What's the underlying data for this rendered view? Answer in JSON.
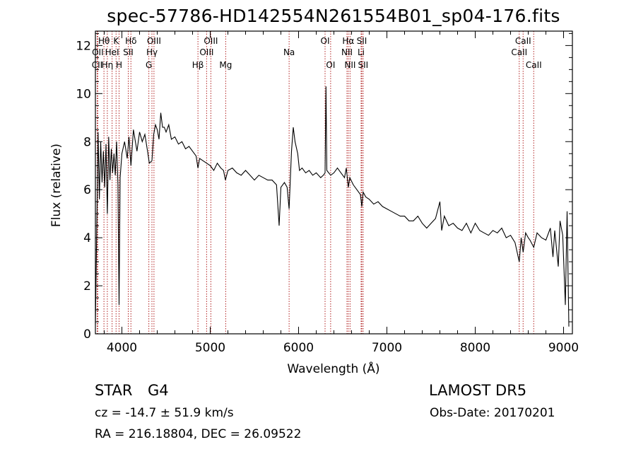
{
  "colors": {
    "axis": "#000000",
    "spectrum": "#000000",
    "line_markers": "#b22222"
  },
  "header": {
    "title": "spec-57786-HD142554N261554B01_sp04-176.fits"
  },
  "info": {
    "object_type": "STAR",
    "subclass": "G4",
    "survey": "LAMOST  DR5",
    "cz": "cz = -14.7 ± 51.9 km/s",
    "obs_date": "Obs-Date: 20170201",
    "radec": "RA = 216.18804, DEC =  26.09522"
  },
  "chart_data": {
    "type": "line",
    "title": "spec-57786-HD142554N261554B01_sp04-176.fits",
    "xlabel": "Wavelength (Å)",
    "ylabel": "Flux (relative)",
    "xlim": [
      3700,
      9100
    ],
    "ylim": [
      0,
      12.6
    ],
    "xticks": [
      4000,
      5000,
      6000,
      7000,
      8000,
      9000
    ],
    "yticks": [
      0,
      2,
      4,
      6,
      8,
      10,
      12
    ],
    "grid": false,
    "series": [
      {
        "values": [
          [
            3700,
            0.4
          ],
          [
            3715,
            4.3
          ],
          [
            3730,
            8.4
          ],
          [
            3745,
            5.6
          ],
          [
            3760,
            8.0
          ],
          [
            3775,
            6.3
          ],
          [
            3790,
            7.6
          ],
          [
            3805,
            6.1
          ],
          [
            3820,
            7.9
          ],
          [
            3835,
            5.0
          ],
          [
            3850,
            8.2
          ],
          [
            3865,
            6.4
          ],
          [
            3880,
            7.7
          ],
          [
            3895,
            6.7
          ],
          [
            3910,
            7.5
          ],
          [
            3925,
            6.6
          ],
          [
            3940,
            8.0
          ],
          [
            3955,
            6.2
          ],
          [
            3968,
            1.2
          ],
          [
            3980,
            6.5
          ],
          [
            4000,
            7.5
          ],
          [
            4030,
            8.0
          ],
          [
            4060,
            7.3
          ],
          [
            4080,
            8.2
          ],
          [
            4102,
            7.0
          ],
          [
            4130,
            8.5
          ],
          [
            4170,
            7.6
          ],
          [
            4200,
            8.4
          ],
          [
            4230,
            8.0
          ],
          [
            4260,
            8.3
          ],
          [
            4290,
            7.6
          ],
          [
            4310,
            7.1
          ],
          [
            4340,
            7.2
          ],
          [
            4360,
            8.3
          ],
          [
            4380,
            8.7
          ],
          [
            4400,
            8.5
          ],
          [
            4420,
            8.1
          ],
          [
            4440,
            9.2
          ],
          [
            4460,
            8.6
          ],
          [
            4480,
            8.6
          ],
          [
            4500,
            8.4
          ],
          [
            4530,
            8.7
          ],
          [
            4560,
            8.1
          ],
          [
            4600,
            8.2
          ],
          [
            4640,
            7.9
          ],
          [
            4680,
            8.0
          ],
          [
            4720,
            7.7
          ],
          [
            4760,
            7.8
          ],
          [
            4800,
            7.6
          ],
          [
            4840,
            7.4
          ],
          [
            4861,
            6.9
          ],
          [
            4880,
            7.3
          ],
          [
            4920,
            7.2
          ],
          [
            4960,
            7.1
          ],
          [
            5000,
            7.0
          ],
          [
            5040,
            6.8
          ],
          [
            5080,
            7.1
          ],
          [
            5120,
            6.9
          ],
          [
            5150,
            6.8
          ],
          [
            5172,
            6.4
          ],
          [
            5200,
            6.8
          ],
          [
            5250,
            6.9
          ],
          [
            5300,
            6.7
          ],
          [
            5350,
            6.6
          ],
          [
            5400,
            6.8
          ],
          [
            5450,
            6.6
          ],
          [
            5500,
            6.4
          ],
          [
            5550,
            6.6
          ],
          [
            5600,
            6.5
          ],
          [
            5650,
            6.4
          ],
          [
            5700,
            6.4
          ],
          [
            5750,
            6.2
          ],
          [
            5780,
            4.5
          ],
          [
            5800,
            6.1
          ],
          [
            5840,
            6.3
          ],
          [
            5870,
            6.1
          ],
          [
            5893,
            5.2
          ],
          [
            5920,
            7.6
          ],
          [
            5940,
            8.6
          ],
          [
            5960,
            8.0
          ],
          [
            5990,
            7.5
          ],
          [
            6010,
            6.8
          ],
          [
            6040,
            6.9
          ],
          [
            6080,
            6.7
          ],
          [
            6120,
            6.8
          ],
          [
            6160,
            6.6
          ],
          [
            6200,
            6.7
          ],
          [
            6250,
            6.5
          ],
          [
            6280,
            6.6
          ],
          [
            6300,
            6.7
          ],
          [
            6310,
            10.3
          ],
          [
            6320,
            6.8
          ],
          [
            6363,
            6.6
          ],
          [
            6400,
            6.7
          ],
          [
            6440,
            6.9
          ],
          [
            6480,
            6.7
          ],
          [
            6520,
            6.5
          ],
          [
            6540,
            6.9
          ],
          [
            6563,
            6.1
          ],
          [
            6580,
            6.5
          ],
          [
            6620,
            6.2
          ],
          [
            6660,
            6.0
          ],
          [
            6700,
            5.8
          ],
          [
            6716,
            5.3
          ],
          [
            6731,
            5.9
          ],
          [
            6760,
            5.7
          ],
          [
            6800,
            5.6
          ],
          [
            6850,
            5.4
          ],
          [
            6900,
            5.5
          ],
          [
            6950,
            5.3
          ],
          [
            7000,
            5.2
          ],
          [
            7050,
            5.1
          ],
          [
            7100,
            5.0
          ],
          [
            7150,
            4.9
          ],
          [
            7200,
            4.9
          ],
          [
            7250,
            4.7
          ],
          [
            7300,
            4.7
          ],
          [
            7350,
            4.9
          ],
          [
            7400,
            4.6
          ],
          [
            7450,
            4.4
          ],
          [
            7500,
            4.6
          ],
          [
            7550,
            4.8
          ],
          [
            7600,
            5.5
          ],
          [
            7620,
            4.3
          ],
          [
            7650,
            4.9
          ],
          [
            7700,
            4.5
          ],
          [
            7750,
            4.6
          ],
          [
            7800,
            4.4
          ],
          [
            7850,
            4.3
          ],
          [
            7900,
            4.6
          ],
          [
            7950,
            4.2
          ],
          [
            8000,
            4.6
          ],
          [
            8050,
            4.3
          ],
          [
            8100,
            4.2
          ],
          [
            8150,
            4.1
          ],
          [
            8200,
            4.3
          ],
          [
            8250,
            4.2
          ],
          [
            8300,
            4.4
          ],
          [
            8350,
            4.0
          ],
          [
            8400,
            4.1
          ],
          [
            8450,
            3.8
          ],
          [
            8498,
            3.0
          ],
          [
            8520,
            4.0
          ],
          [
            8542,
            3.4
          ],
          [
            8570,
            4.2
          ],
          [
            8600,
            4.0
          ],
          [
            8620,
            3.9
          ],
          [
            8662,
            3.6
          ],
          [
            8700,
            4.2
          ],
          [
            8750,
            4.0
          ],
          [
            8800,
            3.9
          ],
          [
            8850,
            4.4
          ],
          [
            8880,
            3.2
          ],
          [
            8900,
            4.3
          ],
          [
            8940,
            2.8
          ],
          [
            8960,
            4.7
          ],
          [
            8990,
            4.1
          ],
          [
            9020,
            1.2
          ],
          [
            9040,
            5.1
          ],
          [
            9060,
            0.3
          ]
        ]
      }
    ],
    "spectral_lines": [
      {
        "label": "OII",
        "wavelength": 3727,
        "row": 1
      },
      {
        "label": "CII",
        "wavelength": 3720,
        "row": 2
      },
      {
        "label": "Hθ",
        "wavelength": 3797,
        "row": 0
      },
      {
        "label": "Hη",
        "wavelength": 3835,
        "row": 2
      },
      {
        "label": "HeI",
        "wavelength": 3889,
        "row": 1
      },
      {
        "label": "K",
        "wavelength": 3934,
        "row": 0
      },
      {
        "label": "H",
        "wavelength": 3968,
        "row": 2
      },
      {
        "label": "SII",
        "wavelength": 4072,
        "row": 1
      },
      {
        "label": "Hδ",
        "wavelength": 4102,
        "row": 0
      },
      {
        "label": "Hγ",
        "wavelength": 4340,
        "row": 1
      },
      {
        "label": "G",
        "wavelength": 4305,
        "row": 2
      },
      {
        "label": "OIII",
        "wavelength": 4363,
        "row": 0
      },
      {
        "label": "Hβ",
        "wavelength": 4861,
        "row": 2
      },
      {
        "label": "OIII",
        "wavelength": 4959,
        "row": 1
      },
      {
        "label": "OIII",
        "wavelength": 5007,
        "row": 0
      },
      {
        "label": "Mg",
        "wavelength": 5175,
        "row": 2
      },
      {
        "label": "Na",
        "wavelength": 5893,
        "row": 1
      },
      {
        "label": "OI",
        "wavelength": 6300,
        "row": 0
      },
      {
        "label": "OI",
        "wavelength": 6363,
        "row": 2
      },
      {
        "label": "NII",
        "wavelength": 6548,
        "row": 1
      },
      {
        "label": "Hα",
        "wavelength": 6563,
        "row": 0
      },
      {
        "label": "NII",
        "wavelength": 6583,
        "row": 2
      },
      {
        "label": "SII",
        "wavelength": 6716,
        "row": 0
      },
      {
        "label": "Li",
        "wavelength": 6708,
        "row": 1
      },
      {
        "label": "SII",
        "wavelength": 6731,
        "row": 2
      },
      {
        "label": "CaII",
        "wavelength": 8498,
        "row": 1
      },
      {
        "label": "CaII",
        "wavelength": 8542,
        "row": 0
      },
      {
        "label": "CaII",
        "wavelength": 8662,
        "row": 2
      }
    ]
  }
}
